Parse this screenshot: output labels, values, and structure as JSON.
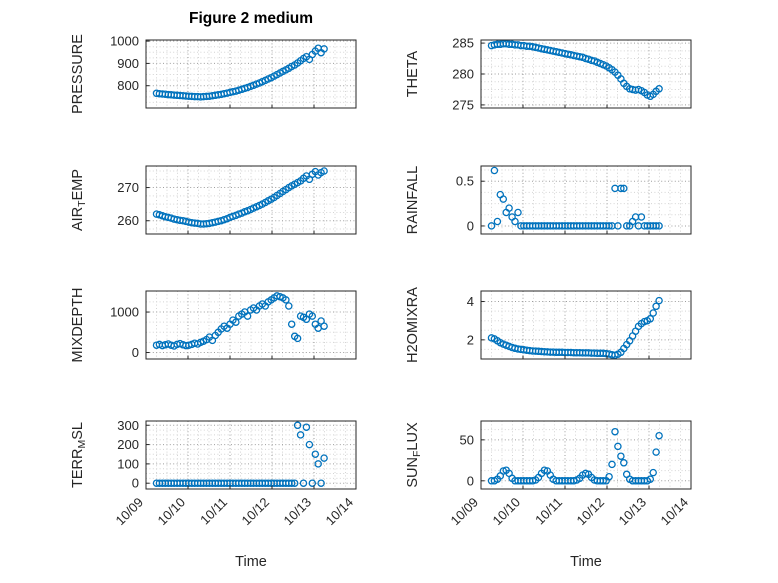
{
  "style": {
    "marker_color": "#0072BD",
    "axis_color": "#262626",
    "grid_major_color": "#9d9d9d",
    "grid_minor_color": "#d4d4d4",
    "background": "#ffffff"
  },
  "chart_data": {
    "type": "scatter",
    "figure_title": "Figure 2 medium",
    "marker": {
      "shape": "circle-open",
      "color": "#0072BD"
    },
    "grid": true,
    "layout": "4 rows x 2 columns subplots",
    "x_axis": {
      "label": "Time",
      "lim": [
        9,
        14
      ],
      "ticks": [
        9,
        10,
        11,
        12,
        13,
        14
      ],
      "tick_labels": [
        "10/09",
        "10/10",
        "10/11",
        "10/12",
        "10/13",
        "10/14"
      ]
    },
    "x": [
      9.25,
      9.32,
      9.39,
      9.46,
      9.53,
      9.6,
      9.67,
      9.74,
      9.81,
      9.88,
      9.95,
      10.02,
      10.09,
      10.16,
      10.23,
      10.3,
      10.37,
      10.44,
      10.51,
      10.58,
      10.65,
      10.72,
      10.79,
      10.86,
      10.93,
      11,
      11.07,
      11.14,
      11.21,
      11.28,
      11.35,
      11.42,
      11.49,
      11.56,
      11.63,
      11.7,
      11.77,
      11.84,
      11.91,
      11.98,
      12.05,
      12.12,
      12.19,
      12.26,
      12.33,
      12.4,
      12.47,
      12.54,
      12.61,
      12.68,
      12.75,
      12.82,
      12.89,
      12.96,
      13.03,
      13.1,
      13.17,
      13.24
    ],
    "subplots": [
      {
        "id": "pressure",
        "ylabel": "PRESSURE",
        "ylabel_parts": [
          [
            "PRESSURE",
            false
          ]
        ],
        "ylim": [
          700,
          1005
        ],
        "yticks": [
          800,
          900,
          1000
        ],
        "ytick_labels": [
          "800",
          "900",
          "1000"
        ],
        "y": [
          766,
          764,
          763,
          762,
          760,
          759,
          758,
          757,
          756,
          755,
          754,
          753,
          752,
          751,
          751,
          750,
          751,
          752,
          753,
          755,
          757,
          759,
          761,
          764,
          767,
          770,
          773,
          776,
          780,
          784,
          788,
          792,
          797,
          802,
          807,
          812,
          818,
          824,
          830,
          836,
          843,
          850,
          857,
          864,
          871,
          878,
          886,
          893,
          902,
          912,
          922,
          930,
          918,
          940,
          955,
          968,
          948,
          965
        ]
      },
      {
        "id": "theta",
        "ylabel": "THETA",
        "ylabel_parts": [
          [
            "THETA",
            false
          ]
        ],
        "ylim": [
          274.5,
          285.5
        ],
        "yticks": [
          275,
          280,
          285
        ],
        "ytick_labels": [
          "275",
          "280",
          "285"
        ],
        "y": [
          284.6,
          284.7,
          284.8,
          284.8,
          284.9,
          284.9,
          284.8,
          284.8,
          284.7,
          284.7,
          284.6,
          284.6,
          284.5,
          284.5,
          284.4,
          284.3,
          284.2,
          284.1,
          284,
          283.9,
          283.8,
          283.7,
          283.6,
          283.5,
          283.4,
          283.3,
          283.2,
          283.1,
          283,
          282.9,
          282.8,
          282.7,
          282.5,
          282.4,
          282.2,
          282.1,
          281.9,
          281.7,
          281.5,
          281.3,
          281,
          280.7,
          280.3,
          279.8,
          279.2,
          278.5,
          278,
          277.6,
          277.5,
          277.4,
          277.5,
          277.3,
          277,
          276.6,
          276.4,
          276.7,
          277.2,
          277.6
        ]
      },
      {
        "id": "air-temp",
        "ylabel": "AIR_TEMP",
        "ylabel_parts": [
          [
            "AIR",
            false
          ],
          [
            "T",
            true
          ],
          [
            "EMP",
            false
          ]
        ],
        "ylim": [
          256,
          276.5
        ],
        "yticks": [
          260,
          270
        ],
        "ytick_labels": [
          "260",
          "270"
        ],
        "y": [
          262,
          261.8,
          261.5,
          261.2,
          261,
          260.8,
          260.5,
          260.3,
          260.1,
          260,
          259.8,
          259.6,
          259.4,
          259.3,
          259.2,
          259,
          259,
          259.1,
          259.2,
          259.4,
          259.6,
          259.8,
          260,
          260.3,
          260.6,
          261,
          261.3,
          261.6,
          262,
          262.3,
          262.7,
          263,
          263.4,
          263.8,
          264.2,
          264.6,
          265,
          265.5,
          266,
          266.5,
          267,
          267.6,
          268.2,
          268.8,
          269.4,
          270,
          270.5,
          271,
          271.5,
          272,
          272.8,
          273.5,
          272.5,
          274,
          274.8,
          273.8,
          274.5,
          275
        ]
      },
      {
        "id": "rainfall",
        "ylabel": "RAINFALL",
        "ylabel_parts": [
          [
            "RAINFALL",
            false
          ]
        ],
        "ylim": [
          -0.09,
          0.67
        ],
        "yticks": [
          0,
          0.5
        ],
        "ytick_labels": [
          "0",
          "0.5"
        ],
        "y": [
          0,
          0.62,
          0.05,
          0.35,
          0.3,
          0.15,
          0.2,
          0.1,
          0.05,
          0.15,
          0,
          0,
          0,
          0,
          0,
          0,
          0,
          0,
          0,
          0,
          0,
          0,
          0,
          0,
          0,
          0,
          0,
          0,
          0,
          0,
          0,
          0,
          0,
          0,
          0,
          0,
          0,
          0,
          0,
          0,
          0,
          0,
          0.42,
          0,
          0.42,
          0.42,
          0,
          0,
          0.05,
          0.1,
          0,
          0.1,
          0,
          0,
          0,
          0,
          0,
          0
        ]
      },
      {
        "id": "mixdepth",
        "ylabel": "MIXDEPTH",
        "ylabel_parts": [
          [
            "MIXDEPTH",
            false
          ]
        ],
        "ylim": [
          -160,
          1520
        ],
        "yticks": [
          0,
          1000
        ],
        "ytick_labels": [
          "0",
          "1000"
        ],
        "y": [
          180,
          200,
          170,
          190,
          210,
          180,
          160,
          200,
          220,
          190,
          170,
          180,
          200,
          230,
          210,
          250,
          280,
          320,
          380,
          300,
          420,
          500,
          580,
          650,
          600,
          700,
          800,
          750,
          900,
          950,
          1000,
          900,
          1050,
          1100,
          1050,
          1150,
          1200,
          1150,
          1250,
          1300,
          1350,
          1400,
          1380,
          1350,
          1300,
          1150,
          700,
          400,
          350,
          900,
          870,
          820,
          950,
          900,
          700,
          600,
          780,
          650
        ]
      },
      {
        "id": "h2omixra",
        "ylabel": "H2OMIXRA",
        "ylabel_parts": [
          [
            "H2OMIXRA",
            false
          ]
        ],
        "ylim": [
          1.0,
          4.55
        ],
        "yticks": [
          2,
          4
        ],
        "ytick_labels": [
          "2",
          "4"
        ],
        "y": [
          2.1,
          2.05,
          1.95,
          1.85,
          1.78,
          1.72,
          1.66,
          1.6,
          1.56,
          1.52,
          1.5,
          1.48,
          1.46,
          1.44,
          1.42,
          1.41,
          1.4,
          1.39,
          1.38,
          1.37,
          1.36,
          1.36,
          1.35,
          1.35,
          1.35,
          1.34,
          1.34,
          1.34,
          1.33,
          1.33,
          1.33,
          1.32,
          1.32,
          1.32,
          1.31,
          1.31,
          1.3,
          1.3,
          1.3,
          1.28,
          1.26,
          1.22,
          1.2,
          1.25,
          1.35,
          1.55,
          1.75,
          1.95,
          2.2,
          2.45,
          2.7,
          2.85,
          2.95,
          3,
          3.1,
          3.4,
          3.75,
          4.05
        ]
      },
      {
        "id": "terr-msl",
        "ylabel": "TERR_MSL",
        "ylabel_parts": [
          [
            "TERR",
            false
          ],
          [
            "M",
            true
          ],
          [
            "SL",
            false
          ]
        ],
        "ylim": [
          -30,
          322
        ],
        "yticks": [
          0,
          100,
          200,
          300
        ],
        "ytick_labels": [
          "0",
          "100",
          "200",
          "300"
        ],
        "y": [
          0,
          0,
          0,
          0,
          0,
          0,
          0,
          0,
          0,
          0,
          0,
          0,
          0,
          0,
          0,
          0,
          0,
          0,
          0,
          0,
          0,
          0,
          0,
          0,
          0,
          0,
          0,
          0,
          0,
          0,
          0,
          0,
          0,
          0,
          0,
          0,
          0,
          0,
          0,
          0,
          0,
          0,
          0,
          0,
          0,
          0,
          0,
          0,
          300,
          250,
          0,
          290,
          200,
          0,
          150,
          100,
          0,
          130
        ]
      },
      {
        "id": "sun-flux",
        "ylabel": "SUN_FLUX",
        "ylabel_parts": [
          [
            "SUN",
            false
          ],
          [
            "F",
            true
          ],
          [
            "LUX",
            false
          ]
        ],
        "ylim": [
          -10,
          73
        ],
        "yticks": [
          0,
          50
        ],
        "ytick_labels": [
          "0",
          "50"
        ],
        "y": [
          0,
          0,
          2,
          6,
          12,
          13,
          9,
          3,
          0,
          0,
          0,
          0,
          0,
          0,
          0,
          1,
          4,
          9,
          13,
          12,
          7,
          2,
          0,
          0,
          0,
          0,
          0,
          0,
          0,
          1,
          3,
          7,
          9,
          8,
          4,
          1,
          0,
          0,
          0,
          0,
          5,
          20,
          60,
          42,
          30,
          22,
          8,
          2,
          0,
          0,
          0,
          0,
          0,
          0,
          2,
          10,
          35,
          55
        ]
      }
    ]
  }
}
